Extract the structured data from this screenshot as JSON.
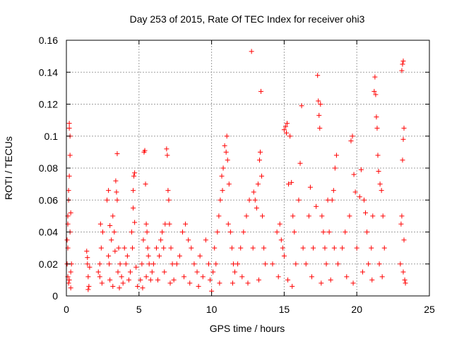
{
  "chart_data": {
    "type": "scatter",
    "title": "Day 253 of 2015, Rate Of TEC Index for receiver ohi3",
    "xlabel": "GPS time / hours",
    "ylabel": "ROTI / TECUs",
    "xlim": [
      0,
      25
    ],
    "ylim": [
      0,
      0.16
    ],
    "x_ticks": [
      0,
      5,
      10,
      15,
      20,
      25
    ],
    "x_tick_labels": [
      "0",
      "5",
      "10",
      "15",
      "20",
      "25"
    ],
    "y_ticks": [
      0,
      0.02,
      0.04,
      0.06,
      0.08,
      0.1,
      0.12,
      0.14,
      0.16
    ],
    "y_tick_labels": [
      "0",
      "0.02",
      "0.04",
      "0.06",
      "0.08",
      "0.1",
      "0.12",
      "0.14",
      "0.16"
    ],
    "grid": true,
    "marker": "plus",
    "color": "#ff0000",
    "series": [
      {
        "points": [
          [
            0.05,
            0.035
          ],
          [
            0.1,
            0.05
          ],
          [
            0.15,
            0.066
          ],
          [
            0.2,
            0.105
          ],
          [
            0.2,
            0.108
          ],
          [
            0.25,
            0.1
          ],
          [
            0.25,
            0.088
          ],
          [
            0.2,
            0.075
          ],
          [
            0.15,
            0.06
          ],
          [
            0.1,
            0.03
          ],
          [
            0.05,
            0.02
          ],
          [
            0.1,
            0.012
          ],
          [
            0.2,
            0.01
          ],
          [
            0.3,
            0.015
          ],
          [
            0.35,
            0.02
          ],
          [
            0.3,
            0.005
          ],
          [
            0.15,
            0.008
          ],
          [
            0.25,
            0.04
          ],
          [
            0.3,
            0.052
          ],
          [
            0.1,
            0.045
          ],
          [
            1.4,
            0.028
          ],
          [
            1.45,
            0.02
          ],
          [
            1.5,
            0.012
          ],
          [
            1.55,
            0.006
          ],
          [
            1.5,
            0.004
          ],
          [
            1.6,
            0.018
          ],
          [
            1.45,
            0.024
          ],
          [
            2.2,
            0.015
          ],
          [
            2.3,
            0.012
          ],
          [
            2.4,
            0.03
          ],
          [
            2.5,
            0.04
          ],
          [
            2.35,
            0.045
          ],
          [
            2.45,
            0.008
          ],
          [
            2.3,
            0.02
          ],
          [
            2.8,
            0.06
          ],
          [
            2.9,
            0.066
          ],
          [
            2.95,
            0.02
          ],
          [
            3.0,
            0.01
          ],
          [
            3.1,
            0.035
          ],
          [
            3.2,
            0.05
          ],
          [
            3.3,
            0.04
          ],
          [
            3.4,
            0.072
          ],
          [
            3.45,
            0.065
          ],
          [
            3.5,
            0.089
          ],
          [
            3.5,
            0.06
          ],
          [
            3.6,
            0.03
          ],
          [
            3.7,
            0.02
          ],
          [
            3.8,
            0.012
          ],
          [
            3.9,
            0.008
          ],
          [
            3.2,
            0.006
          ],
          [
            3.0,
            0.044
          ],
          [
            3.35,
            0.028
          ],
          [
            3.55,
            0.015
          ],
          [
            3.65,
            0.005
          ],
          [
            2.9,
            0.025
          ],
          [
            4.0,
            0.03
          ],
          [
            4.1,
            0.02
          ],
          [
            4.2,
            0.025
          ],
          [
            4.3,
            0.01
          ],
          [
            4.5,
            0.04
          ],
          [
            4.6,
            0.066
          ],
          [
            4.65,
            0.075
          ],
          [
            4.7,
            0.077
          ],
          [
            4.6,
            0.055
          ],
          [
            4.7,
            0.046
          ],
          [
            4.8,
            0.018
          ],
          [
            4.9,
            0.006
          ],
          [
            4.4,
            0.015
          ],
          [
            4.55,
            0.03
          ],
          [
            5.1,
            0.01
          ],
          [
            5.2,
            0.02
          ],
          [
            5.3,
            0.035
          ],
          [
            5.35,
            0.09
          ],
          [
            5.4,
            0.091
          ],
          [
            5.45,
            0.07
          ],
          [
            5.5,
            0.045
          ],
          [
            5.55,
            0.04
          ],
          [
            5.6,
            0.03
          ],
          [
            5.7,
            0.02
          ],
          [
            5.8,
            0.01
          ],
          [
            5.9,
            0.015
          ],
          [
            5.5,
            0.012
          ],
          [
            5.65,
            0.025
          ],
          [
            5.25,
            0.005
          ],
          [
            6.0,
            0.02
          ],
          [
            6.2,
            0.03
          ],
          [
            6.4,
            0.025
          ],
          [
            6.5,
            0.035
          ],
          [
            6.6,
            0.04
          ],
          [
            6.7,
            0.03
          ],
          [
            6.8,
            0.045
          ],
          [
            6.9,
            0.092
          ],
          [
            6.95,
            0.088
          ],
          [
            7.0,
            0.066
          ],
          [
            7.05,
            0.06
          ],
          [
            7.1,
            0.045
          ],
          [
            7.2,
            0.03
          ],
          [
            7.3,
            0.02
          ],
          [
            7.4,
            0.01
          ],
          [
            6.3,
            0.01
          ],
          [
            6.75,
            0.015
          ],
          [
            7.15,
            0.008
          ],
          [
            7.6,
            0.02
          ],
          [
            7.8,
            0.025
          ],
          [
            8.0,
            0.04
          ],
          [
            8.2,
            0.045
          ],
          [
            8.4,
            0.035
          ],
          [
            8.6,
            0.03
          ],
          [
            8.8,
            0.02
          ],
          [
            9.0,
            0.015
          ],
          [
            9.2,
            0.025
          ],
          [
            9.4,
            0.012
          ],
          [
            9.6,
            0.035
          ],
          [
            9.8,
            0.02
          ],
          [
            9.9,
            0.01
          ],
          [
            8.5,
            0.008
          ],
          [
            9.1,
            0.006
          ],
          [
            8.1,
            0.012
          ],
          [
            10.0,
            0.003
          ],
          [
            10.1,
            0.015
          ],
          [
            10.2,
            0.03
          ],
          [
            10.4,
            0.04
          ],
          [
            10.5,
            0.05
          ],
          [
            10.6,
            0.06
          ],
          [
            10.7,
            0.075
          ],
          [
            10.8,
            0.08
          ],
          [
            10.9,
            0.094
          ],
          [
            11.0,
            0.09
          ],
          [
            11.05,
            0.1
          ],
          [
            11.1,
            0.085
          ],
          [
            11.2,
            0.07
          ],
          [
            11.3,
            0.04
          ],
          [
            11.4,
            0.03
          ],
          [
            11.5,
            0.02
          ],
          [
            11.6,
            0.015
          ],
          [
            10.3,
            0.02
          ],
          [
            10.75,
            0.066
          ],
          [
            11.15,
            0.045
          ],
          [
            10.55,
            0.008
          ],
          [
            11.45,
            0.008
          ],
          [
            11.8,
            0.02
          ],
          [
            12.0,
            0.03
          ],
          [
            12.2,
            0.04
          ],
          [
            12.4,
            0.05
          ],
          [
            12.6,
            0.06
          ],
          [
            12.75,
            0.153
          ],
          [
            12.9,
            0.065
          ],
          [
            13.0,
            0.06
          ],
          [
            13.1,
            0.055
          ],
          [
            13.2,
            0.07
          ],
          [
            13.3,
            0.085
          ],
          [
            13.35,
            0.09
          ],
          [
            13.4,
            0.128
          ],
          [
            13.45,
            0.075
          ],
          [
            13.5,
            0.05
          ],
          [
            13.6,
            0.03
          ],
          [
            13.7,
            0.02
          ],
          [
            12.1,
            0.012
          ],
          [
            12.5,
            0.008
          ],
          [
            13.25,
            0.01
          ],
          [
            12.85,
            0.03
          ],
          [
            14.2,
            0.02
          ],
          [
            14.5,
            0.04
          ],
          [
            14.7,
            0.045
          ],
          [
            14.8,
            0.035
          ],
          [
            14.9,
            0.03
          ],
          [
            15.0,
            0.025
          ],
          [
            15.0,
            0.104
          ],
          [
            15.1,
            0.106
          ],
          [
            15.15,
            0.102
          ],
          [
            15.2,
            0.108
          ],
          [
            15.3,
            0.07
          ],
          [
            15.4,
            0.1
          ],
          [
            15.5,
            0.071
          ],
          [
            15.6,
            0.05
          ],
          [
            15.7,
            0.04
          ],
          [
            15.8,
            0.02
          ],
          [
            16.0,
            0.06
          ],
          [
            16.1,
            0.083
          ],
          [
            16.2,
            0.119
          ],
          [
            16.3,
            0.03
          ],
          [
            14.6,
            0.012
          ],
          [
            15.25,
            0.01
          ],
          [
            15.55,
            0.006
          ],
          [
            16.5,
            0.02
          ],
          [
            16.7,
            0.05
          ],
          [
            16.8,
            0.068
          ],
          [
            17.0,
            0.03
          ],
          [
            17.2,
            0.056
          ],
          [
            17.3,
            0.138
          ],
          [
            17.35,
            0.122
          ],
          [
            17.4,
            0.113
          ],
          [
            17.45,
            0.105
          ],
          [
            17.5,
            0.12
          ],
          [
            17.6,
            0.05
          ],
          [
            17.7,
            0.04
          ],
          [
            17.8,
            0.03
          ],
          [
            17.9,
            0.02
          ],
          [
            18.0,
            0.06
          ],
          [
            18.1,
            0.04
          ],
          [
            18.3,
            0.06
          ],
          [
            18.4,
            0.066
          ],
          [
            18.5,
            0.08
          ],
          [
            18.6,
            0.088
          ],
          [
            18.7,
            0.02
          ],
          [
            16.9,
            0.012
          ],
          [
            17.55,
            0.008
          ],
          [
            18.2,
            0.01
          ],
          [
            18.45,
            0.03
          ],
          [
            19.0,
            0.03
          ],
          [
            19.2,
            0.04
          ],
          [
            19.5,
            0.05
          ],
          [
            19.6,
            0.097
          ],
          [
            19.7,
            0.1
          ],
          [
            19.8,
            0.076
          ],
          [
            19.9,
            0.065
          ],
          [
            20.0,
            0.03
          ],
          [
            20.2,
            0.062
          ],
          [
            20.3,
            0.079
          ],
          [
            20.5,
            0.06
          ],
          [
            20.6,
            0.052
          ],
          [
            20.7,
            0.04
          ],
          [
            20.8,
            0.02
          ],
          [
            19.3,
            0.012
          ],
          [
            19.75,
            0.008
          ],
          [
            20.4,
            0.015
          ],
          [
            21.0,
            0.03
          ],
          [
            21.1,
            0.05
          ],
          [
            21.2,
            0.128
          ],
          [
            21.25,
            0.137
          ],
          [
            21.3,
            0.126
          ],
          [
            21.35,
            0.112
          ],
          [
            21.4,
            0.105
          ],
          [
            21.45,
            0.088
          ],
          [
            21.5,
            0.078
          ],
          [
            21.6,
            0.07
          ],
          [
            21.7,
            0.066
          ],
          [
            21.8,
            0.05
          ],
          [
            21.9,
            0.03
          ],
          [
            21.05,
            0.01
          ],
          [
            21.55,
            0.02
          ],
          [
            21.75,
            0.012
          ],
          [
            23.0,
            0.02
          ],
          [
            23.05,
            0.045
          ],
          [
            23.1,
            0.05
          ],
          [
            23.15,
            0.085
          ],
          [
            23.2,
            0.098
          ],
          [
            23.25,
            0.105
          ],
          [
            23.1,
            0.141
          ],
          [
            23.15,
            0.145
          ],
          [
            23.2,
            0.147
          ],
          [
            23.25,
            0.035
          ],
          [
            23.3,
            0.01
          ],
          [
            23.35,
            0.008
          ],
          [
            23.2,
            0.015
          ]
        ]
      }
    ]
  }
}
